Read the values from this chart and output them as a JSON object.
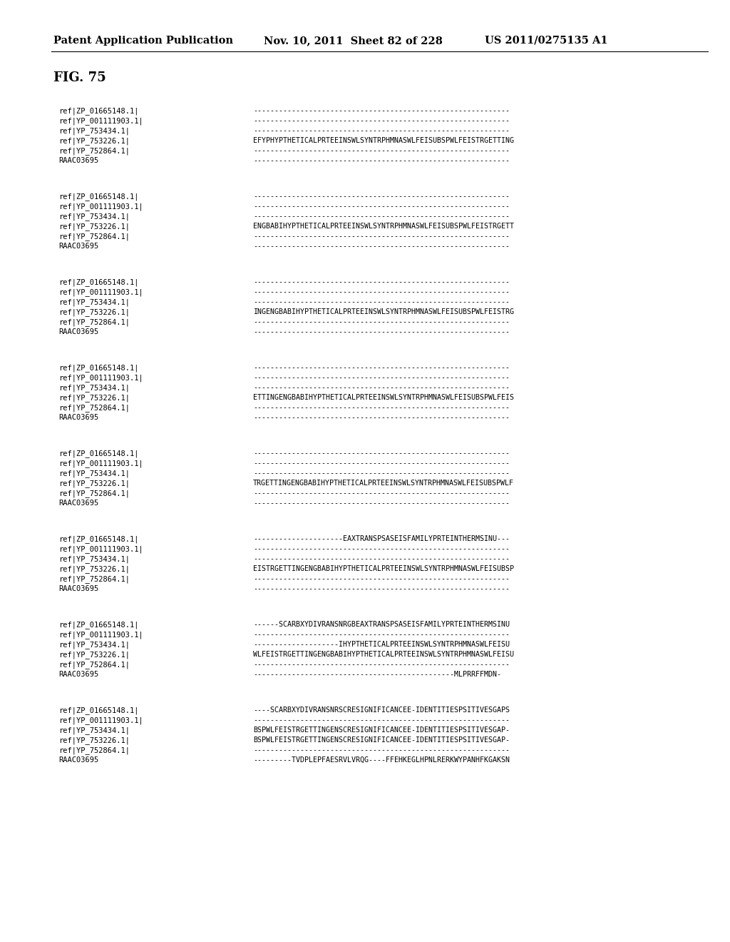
{
  "header_left": "Patent Application Publication",
  "header_mid": "Nov. 10, 2011  Sheet 82 of 228",
  "header_right": "US 2011/0275135 A1",
  "fig_label": "FIG. 75",
  "background_color": "#ffffff",
  "blocks": [
    {
      "rows": [
        [
          "ref|ZP_01665148.1|",
          "------------------------------------------------------------"
        ],
        [
          "ref|YP_001111903.1|",
          "------------------------------------------------------------"
        ],
        [
          "ref|YP_753434.1|",
          "------------------------------------------------------------"
        ],
        [
          "ref|YP_753226.1|",
          "EFYPHYPTHETICALPRTEEINSWLSYNTRPHMNASWLFEISUBSPWLFEISTRGETTING"
        ],
        [
          "ref|YP_752864.1|",
          "------------------------------------------------------------"
        ],
        [
          "RAAC03695",
          "------------------------------------------------------------"
        ]
      ]
    },
    {
      "rows": [
        [
          "ref|ZP_01665148.1|",
          "------------------------------------------------------------"
        ],
        [
          "ref|YP_001111903.1|",
          "------------------------------------------------------------"
        ],
        [
          "ref|YP_753434.1|",
          "------------------------------------------------------------"
        ],
        [
          "ref|YP_753226.1|",
          "ENGBABIHYPTHETICALPRTEEINSWLSYNTRPHMNASWLFEISUBSPWLFEISTRGETT"
        ],
        [
          "ref|YP_752864.1|",
          "------------------------------------------------------------"
        ],
        [
          "RAAC03695",
          "------------------------------------------------------------"
        ]
      ]
    },
    {
      "rows": [
        [
          "ref|ZP_01665148.1|",
          "------------------------------------------------------------"
        ],
        [
          "ref|YP_001111903.1|",
          "------------------------------------------------------------"
        ],
        [
          "ref|YP_753434.1|",
          "------------------------------------------------------------"
        ],
        [
          "ref|YP_753226.1|",
          "INGENGBABIHYPTHETICALPRTEEINSWLSYNTRPHMNASWLFEISUBSPWLFEISTRG"
        ],
        [
          "ref|YP_752864.1|",
          "------------------------------------------------------------"
        ],
        [
          "RAAC03695",
          "------------------------------------------------------------"
        ]
      ]
    },
    {
      "rows": [
        [
          "ref|ZP_01665148.1|",
          "------------------------------------------------------------"
        ],
        [
          "ref|YP_001111903.1|",
          "------------------------------------------------------------"
        ],
        [
          "ref|YP_753434.1|",
          "------------------------------------------------------------"
        ],
        [
          "ref|YP_753226.1|",
          "ETTINGENGBABIHYPTHETICALPRTEEINSWLSYNTRPHMNASWLFEISUBSPWLFEIS"
        ],
        [
          "ref|YP_752864.1|",
          "------------------------------------------------------------"
        ],
        [
          "RAAC03695",
          "------------------------------------------------------------"
        ]
      ]
    },
    {
      "rows": [
        [
          "ref|ZP_01665148.1|",
          "------------------------------------------------------------"
        ],
        [
          "ref|YP_001111903.1|",
          "------------------------------------------------------------"
        ],
        [
          "ref|YP_753434.1|",
          "------------------------------------------------------------"
        ],
        [
          "ref|YP_753226.1|",
          "TRGETTINGENGBABIHYPTHETICALPRTEEINSWLSYNTRPHMNASWLFEISUBSPWLF"
        ],
        [
          "ref|YP_752864.1|",
          "------------------------------------------------------------"
        ],
        [
          "RAAC03695",
          "------------------------------------------------------------"
        ]
      ]
    },
    {
      "rows": [
        [
          "ref|ZP_01665148.1|",
          "---------------------EAXTRANSPSASEISFAMILYPRTEINTHERMSINU---"
        ],
        [
          "ref|YP_001111903.1|",
          "------------------------------------------------------------"
        ],
        [
          "ref|YP_753434.1|",
          "------------------------------------------------------------"
        ],
        [
          "ref|YP_753226.1|",
          "EISTRGETTINGENGBABIHYPTHETICALPRTEEINSWLSYNTRPHMNASWLFEISUBSP"
        ],
        [
          "ref|YP_752864.1|",
          "------------------------------------------------------------"
        ],
        [
          "RAAC03695",
          "------------------------------------------------------------"
        ]
      ]
    },
    {
      "rows": [
        [
          "ref|ZP_01665148.1|",
          "------SCARBXYDIVRANSNRGBEAXTRANSPSASEISFAMILYPRTEINTHERMSINU"
        ],
        [
          "ref|YP_001111903.1|",
          "------------------------------------------------------------"
        ],
        [
          "ref|YP_753434.1|",
          "--------------------IHYPTHETICALPRTEEINSWLSYNTRPHMNASWLFEISU"
        ],
        [
          "ref|YP_753226.1|",
          "WLFEISTRGETTINGENGBABIHYPTHETICALPRTEEINSWLSYNTRPHMNASWLFEISU"
        ],
        [
          "ref|YP_752864.1|",
          "------------------------------------------------------------"
        ],
        [
          "RAAC03695",
          "-----------------------------------------------MLPRRFFMDN-"
        ]
      ]
    },
    {
      "rows": [
        [
          "ref|ZP_01665148.1|",
          "----SCARBXYDIVRANSNRSCRESIGNIFICANCEE-IDENTITIESPSITIVESGAPS"
        ],
        [
          "ref|YP_001111903.1|",
          "------------------------------------------------------------"
        ],
        [
          "ref|YP_753434.1|",
          "BSPWLFEISTRGETTINGENSCRESIGNIFICANCEE-IDENTITIESPSITIVESGAP-"
        ],
        [
          "ref|YP_753226.1|",
          "BSPWLFEISTRGETTINGENSCRESIGNIFICANCEE-IDENTITIESPSITIVESGAP-"
        ],
        [
          "ref|YP_752864.1|",
          "------------------------------------------------------------"
        ],
        [
          "RAAC03695",
          "---------TVDPLEPFAESRVLVRQG----FFEHKEGLHPNLRERKWYPANHFKGAKSN"
        ]
      ]
    }
  ]
}
